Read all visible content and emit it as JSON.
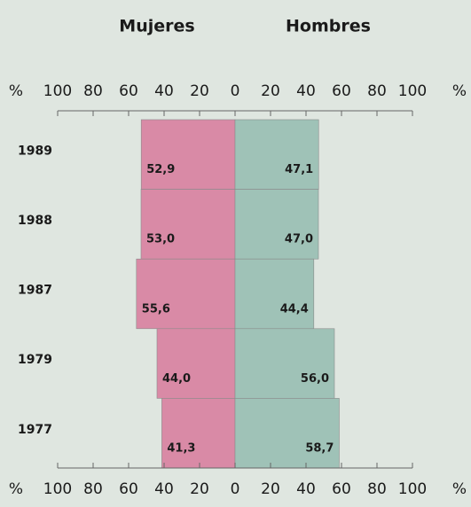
{
  "chart_data": {
    "type": "butterfly-bar",
    "categories": [
      "1989",
      "1988",
      "1987",
      "1979",
      "1977"
    ],
    "series": [
      {
        "name": "Mujeres",
        "color": "#d98aa6",
        "side": "left",
        "values": [
          52.9,
          53.0,
          55.6,
          44.0,
          41.3
        ],
        "value_labels": [
          "52,9",
          "53,0",
          "55,6",
          "44,0",
          "41,3"
        ]
      },
      {
        "name": "Hombres",
        "color": "#9fc2b7",
        "side": "right",
        "values": [
          47.1,
          47.0,
          44.4,
          56.0,
          58.7
        ],
        "value_labels": [
          "47,1",
          "47,0",
          "44,4",
          "56,0",
          "58,7"
        ]
      }
    ],
    "axis_unit": "%",
    "xlim": [
      -100,
      100
    ],
    "xticks": [
      {
        "value": -100,
        "label": "100"
      },
      {
        "value": -80,
        "label": "80"
      },
      {
        "value": -60,
        "label": "60"
      },
      {
        "value": -40,
        "label": "40"
      },
      {
        "value": -20,
        "label": "20"
      },
      0,
      20,
      40,
      60,
      80,
      100
    ]
  }
}
